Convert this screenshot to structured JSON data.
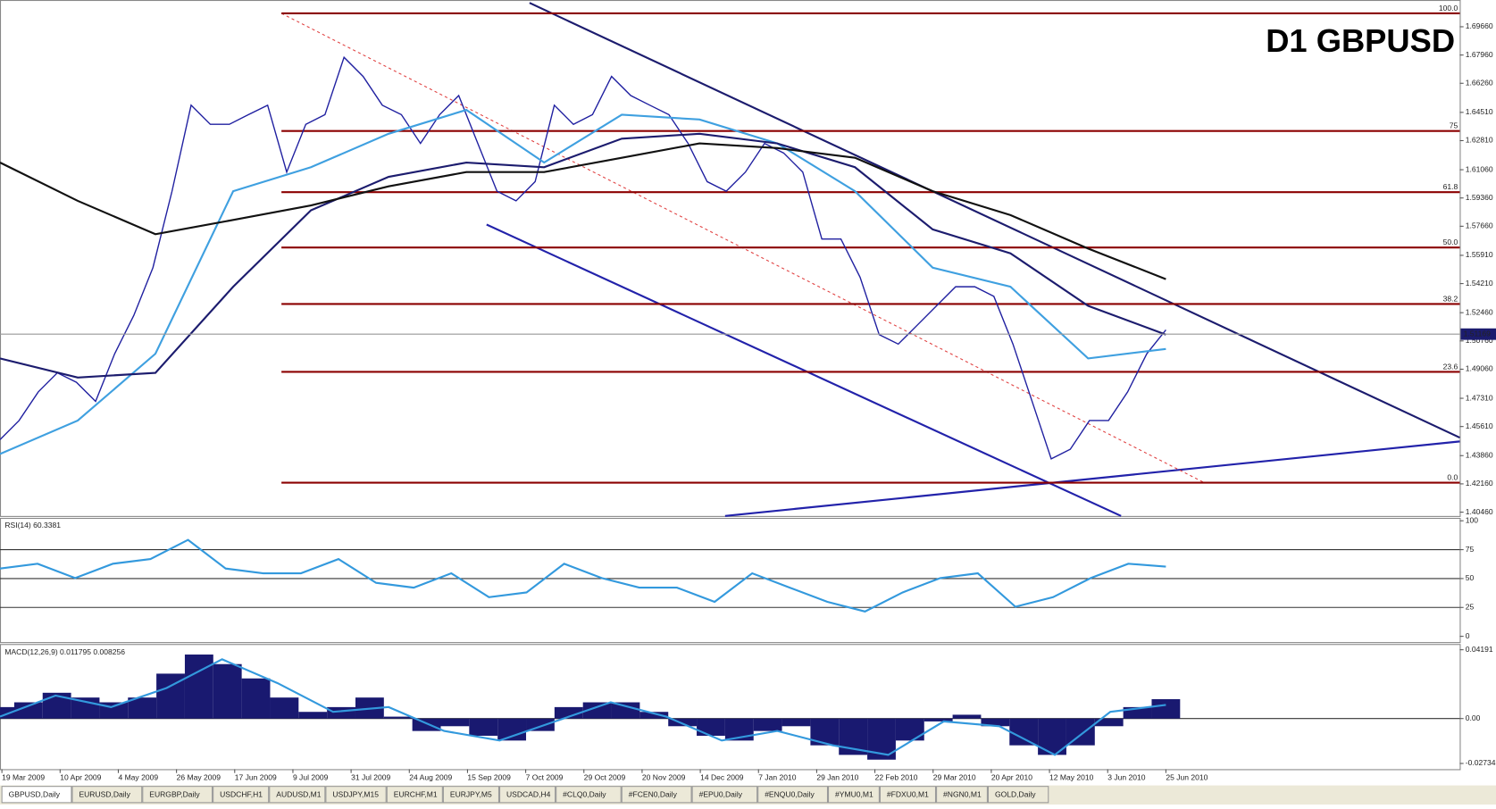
{
  "chart_data": [
    {
      "type": "line",
      "title": "D1 GBPUSD",
      "ylim": [
        1.4023,
        1.7127
      ],
      "yticks": [
        {
          "value": 1.6966,
          "label": "1.69660"
        },
        {
          "value": 1.6796,
          "label": "1.67960"
        },
        {
          "value": 1.6626,
          "label": "1.66260"
        },
        {
          "value": 1.6451,
          "label": "1.64510"
        },
        {
          "value": 1.6281,
          "label": "1.62810"
        },
        {
          "value": 1.6106,
          "label": "1.61060"
        },
        {
          "value": 1.5936,
          "label": "1.59360"
        },
        {
          "value": 1.5766,
          "label": "1.57660"
        },
        {
          "value": 1.5591,
          "label": "1.55910"
        },
        {
          "value": 1.5421,
          "label": "1.54210"
        },
        {
          "value": 1.5246,
          "label": "1.52460"
        },
        {
          "value": 1.5076,
          "label": "1.50760"
        },
        {
          "value": 1.4906,
          "label": "1.49060"
        },
        {
          "value": 1.4731,
          "label": "1.47310"
        },
        {
          "value": 1.4561,
          "label": "1.45610"
        },
        {
          "value": 1.4386,
          "label": "1.43860"
        },
        {
          "value": 1.4216,
          "label": "1.42160"
        },
        {
          "value": 1.4046,
          "label": "1.40460"
        }
      ],
      "x_labels": [
        "19 Mar 2009",
        "10 Apr 2009",
        "4 May 2009",
        "26 May 2009",
        "17 Jun 2009",
        "9 Jul 2009",
        "31 Jul 2009",
        "24 Aug 2009",
        "15 Sep 2009",
        "7 Oct 2009",
        "29 Oct 2009",
        "20 Nov 2009",
        "14 Dec 2009",
        "7 Jan 2010",
        "29 Jan 2010",
        "22 Feb 2010",
        "29 Mar 2010",
        "20 Apr 2010",
        "12 May 2010",
        "3 Jun 2010",
        "25 Jun 2010"
      ],
      "series": [
        {
          "color": "#2020a0",
          "values": [
            1.4482,
            1.4597,
            1.4769,
            1.4884,
            1.4827,
            1.4712,
            1.4999,
            1.5229,
            1.5517,
            1.5977,
            1.6494,
            1.6379,
            1.6379,
            1.6437,
            1.6494,
            1.6092,
            1.6379,
            1.6437,
            1.6782,
            1.6667,
            1.6494,
            1.6437,
            1.6264,
            1.6437,
            1.6552,
            1.6264,
            1.5977,
            1.5919,
            1.6034,
            1.6494,
            1.6379,
            1.6437,
            1.6667,
            1.6552,
            1.6494,
            1.6437,
            1.6264,
            1.6034,
            1.5977,
            1.6092,
            1.6264,
            1.6207,
            1.6092,
            1.5689,
            1.5689,
            1.5459,
            1.5114,
            1.5057,
            1.5172,
            1.5287,
            1.5402,
            1.5402,
            1.5344,
            1.5057,
            1.4712,
            1.4367,
            1.4424,
            1.4597,
            1.4597,
            1.4769,
            1.4999,
            1.5143
          ]
        },
        {
          "color": "#3fa0e0",
          "values": [
            1.4396,
            1.4597,
            1.4999,
            1.5977,
            1.6121,
            1.6322,
            1.6466,
            1.6149,
            1.6437,
            1.6408,
            1.6264,
            1.5977,
            1.5517,
            1.5402,
            1.4971,
            1.5028
          ]
        },
        {
          "color": "#1c1c6e",
          "values": [
            1.4971,
            1.4856,
            1.4884,
            1.5402,
            1.5862,
            1.6063,
            1.6149,
            1.6121,
            1.6293,
            1.6322,
            1.6264,
            1.6121,
            1.5747,
            1.5603,
            1.5287,
            1.5114
          ]
        },
        {
          "color": "#111111",
          "values": [
            1.6149,
            1.5919,
            1.5718,
            1.5804,
            1.5891,
            1.6006,
            1.6092,
            1.6092,
            1.6178,
            1.6264,
            1.6236,
            1.6178,
            1.5977,
            1.5833,
            1.5632,
            1.5448
          ]
        }
      ],
      "levels": [
        {
          "value": 1.7047,
          "label": "100.0"
        },
        {
          "value": 1.6339,
          "label": "75"
        },
        {
          "value": 1.5971,
          "label": "61.8"
        },
        {
          "value": 1.5638,
          "label": "50.0"
        },
        {
          "value": 1.5298,
          "label": "38.2"
        },
        {
          "value": 1.489,
          "label": "23.6"
        },
        {
          "value": 1.4223,
          "label": "0.0"
        }
      ],
      "level_color": "#8b0000",
      "last_price": 1.51169
    },
    {
      "type": "line",
      "title": "RSI(14) 60.3381",
      "ylim": [
        -5,
        102.5
      ],
      "yticks": [
        100,
        75,
        50,
        25,
        0
      ],
      "levels": [
        75,
        50,
        25
      ],
      "series": [
        {
          "color": "#3399dd",
          "values": [
            58.7,
            62.8,
            50.4,
            62.8,
            66.9,
            83.5,
            58.7,
            54.5,
            54.5,
            66.9,
            46.3,
            42.1,
            54.5,
            33.9,
            38.0,
            62.8,
            50.4,
            42.1,
            42.1,
            29.8,
            54.5,
            42.1,
            29.8,
            21.5,
            38.0,
            50.4,
            54.5,
            25.6,
            33.9,
            50.4,
            62.8,
            60.3
          ]
        }
      ]
    },
    {
      "type": "bar",
      "title": "MACD(12,26,9) 0.011795 0.008256",
      "ylim": [
        -0.03083,
        0.0454
      ],
      "yticks": [
        {
          "value": 0.04191,
          "label": "0.04191"
        },
        {
          "value": 0,
          "label": "0.00"
        },
        {
          "value": -0.02734,
          "label": "-0.02734"
        }
      ],
      "series": [
        {
          "color": "#191970",
          "values": [
            0.00698,
            0.00989,
            0.01571,
            0.0128,
            0.00989,
            0.0128,
            0.02735,
            0.03899,
            0.03317,
            0.02444,
            0.0128,
            0.00407,
            0.00698,
            0.0128,
            0.00116,
            -0.00757,
            -0.00466,
            -0.01048,
            -0.01339,
            -0.00757,
            0.00698,
            0.00989,
            0.00989,
            0.00407,
            -0.00466,
            -0.01048,
            -0.01339,
            -0.00757,
            -0.00466,
            -0.0163,
            -0.02212,
            -0.02503,
            -0.01339,
            -0.00175,
            0.00233,
            -0.00466,
            -0.0163,
            -0.02212,
            -0.0163,
            -0.00466,
            0.00698,
            0.0118
          ]
        },
        {
          "color": "#3399dd",
          "type": "line",
          "values": [
            0.00116,
            0.01397,
            0.00698,
            0.01862,
            0.03608,
            0.02153,
            0.00407,
            0.00698,
            -0.00757,
            -0.01339,
            -0.00175,
            0.00989,
            0.00116,
            -0.01339,
            -0.00757,
            -0.0163,
            -0.02212,
            -0.00175,
            -0.00466,
            -0.02212,
            0.00407,
            0.0083
          ]
        }
      ]
    }
  ],
  "tabs": [
    "GBPUSD,Daily",
    "EURUSD,Daily",
    "EURGBP,Daily",
    "USDCHF,H1",
    "AUDUSD,M1",
    "USDJPY,M15",
    "EURCHF,M1",
    "EURJPY,M5",
    "USDCAD,H4",
    "#CLQ0,Daily",
    "#FCEN0,Daily",
    "#EPU0,Daily",
    "#ENQU0,Daily",
    "#YMU0,M1",
    "#FDXU0,M1",
    "#NGN0,M1",
    "GOLD,Daily"
  ]
}
